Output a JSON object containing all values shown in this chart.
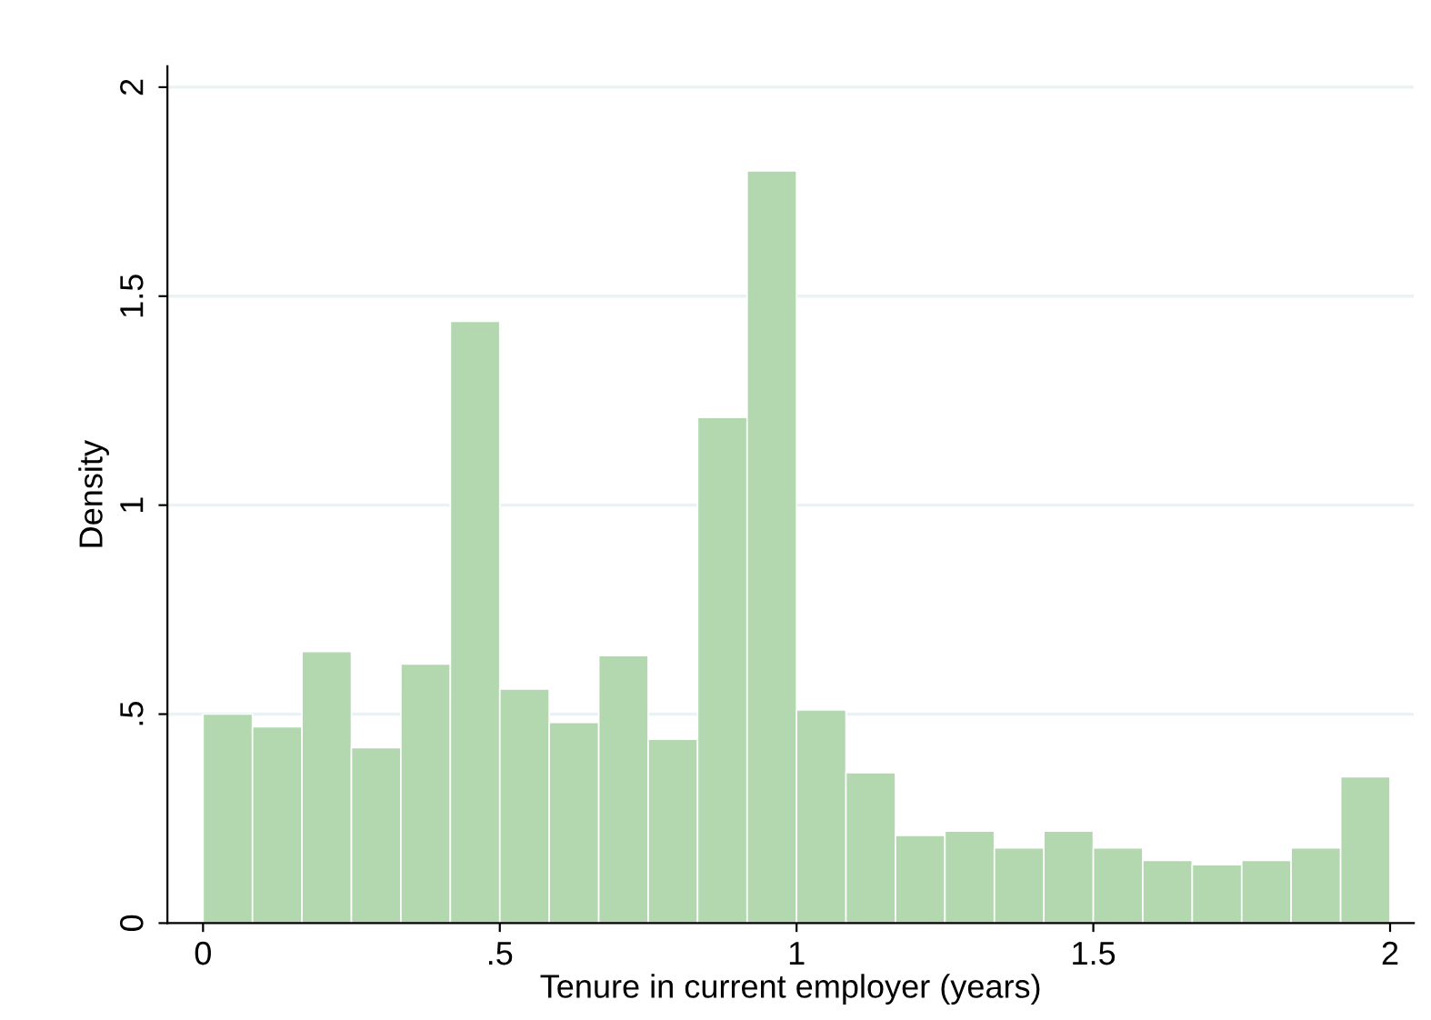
{
  "chart_data": {
    "type": "histogram",
    "xlabel": "Tenure in current employer (years)",
    "ylabel": "Density",
    "bins": [
      0,
      0.0833,
      0.1667,
      0.25,
      0.3333,
      0.4167,
      0.5,
      0.5833,
      0.6667,
      0.75,
      0.8333,
      0.9167,
      1,
      1.0833,
      1.1667,
      1.25,
      1.3333,
      1.4167,
      1.5,
      1.5833,
      1.6667,
      1.75,
      1.8333,
      1.9167,
      2
    ],
    "values": [
      0.5,
      0.47,
      0.65,
      0.42,
      0.62,
      1.44,
      0.56,
      0.48,
      0.64,
      0.44,
      1.21,
      1.8,
      0.51,
      0.36,
      0.21,
      0.22,
      0.18,
      0.22,
      0.18,
      0.15,
      0.14,
      0.15,
      0.18,
      0.35
    ],
    "color": "#b3d8b0",
    "xlim": [
      -0.06,
      2.04
    ],
    "ylim": [
      0,
      2.05
    ],
    "xticks": [
      0,
      {
        "value": 0.5,
        "label": ".5"
      },
      1,
      1.5,
      2
    ],
    "yticks": [
      0,
      {
        "value": 0.5,
        "label": ".5"
      },
      1,
      1.5,
      2
    ],
    "grid": "y"
  }
}
